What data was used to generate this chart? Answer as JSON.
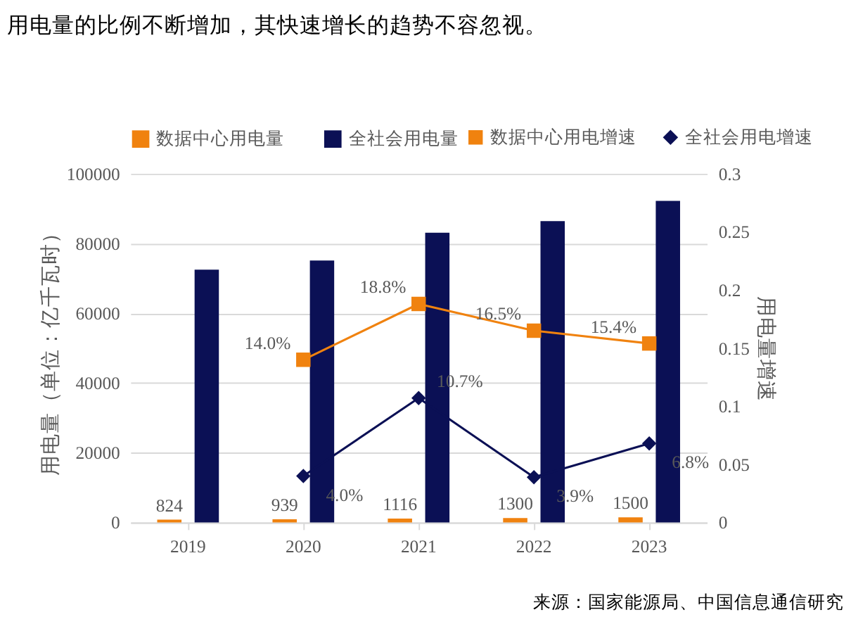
{
  "chart_data": {
    "type": "bar",
    "annotations": [
      "用电量的比例不断增加，其快速增长的趋势不容忽视。",
      "来源：国家能源局、中国信息通信研究"
    ],
    "categories": [
      "2019",
      "2020",
      "2021",
      "2022",
      "2023"
    ],
    "ylabel": "用电量（单位：亿千瓦时）",
    "y2label": "用电量增速",
    "ylim": [
      0,
      100000
    ],
    "yticks": [
      0,
      20000,
      40000,
      60000,
      80000,
      100000
    ],
    "y2lim": [
      0,
      0.3
    ],
    "y2ticks": [
      0,
      0.05,
      0.1,
      0.15,
      0.2,
      0.25,
      0.3
    ],
    "grid": "y",
    "legend": "top",
    "series": [
      {
        "name": "数据中心用电量",
        "color": "#f0820f",
        "values": [
          824,
          939,
          1116,
          1300,
          1500
        ],
        "value_labels": [
          "824",
          "939",
          "1116",
          "1300",
          "1500"
        ]
      },
      {
        "name": "全社会用电量",
        "color": "#0b1055",
        "values": [
          72500,
          75100,
          83100,
          86400,
          92200
        ]
      },
      {
        "name": "数据中心用电增速",
        "type": "line",
        "axis": "y2",
        "marker": "square",
        "color": "#f0820f",
        "values": [
          null,
          0.14,
          0.188,
          0.165,
          0.154
        ],
        "value_labels": [
          null,
          "14.0%",
          "18.8%",
          "16.5%",
          "15.4%"
        ]
      },
      {
        "name": "全社会用电增速",
        "type": "line",
        "axis": "y2",
        "marker": "diamond",
        "color": "#0b1055",
        "values": [
          null,
          0.04,
          0.107,
          0.039,
          0.068
        ],
        "value_labels": [
          null,
          "4.0%",
          "10.7%",
          "3.9%",
          "6.8%"
        ]
      }
    ]
  }
}
